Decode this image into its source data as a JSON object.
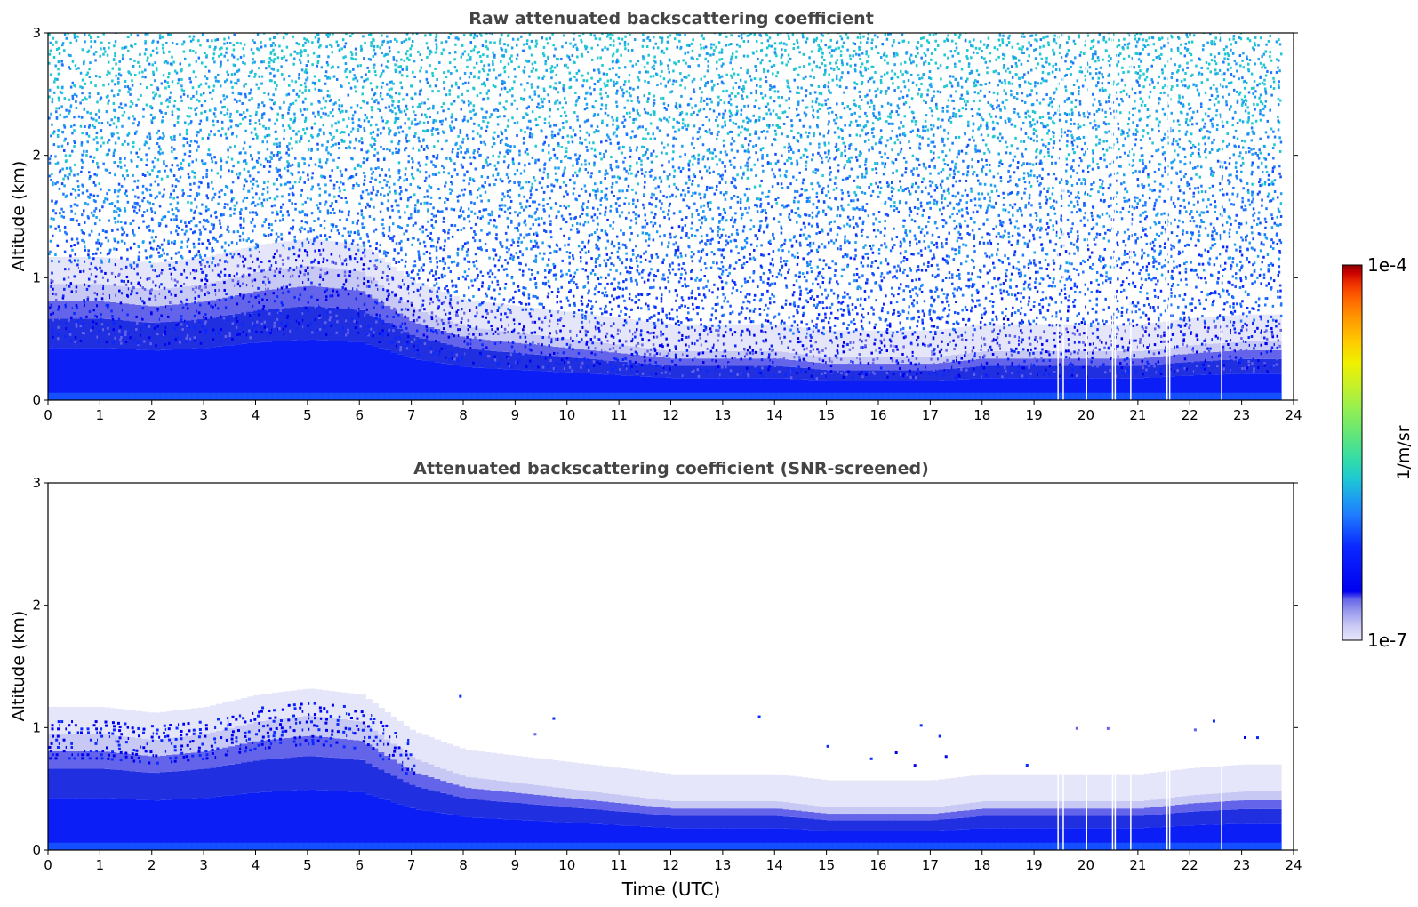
{
  "chart_data": [
    {
      "type": "heatmap",
      "title": "Raw attenuated backscattering coefficient",
      "xlabel": "",
      "ylabel": "Altitude (km)",
      "xlim": [
        0,
        24
      ],
      "ylim": [
        0,
        3
      ],
      "x_ticks": [
        0,
        1,
        2,
        3,
        4,
        5,
        6,
        7,
        8,
        9,
        10,
        11,
        12,
        13,
        14,
        15,
        16,
        17,
        18,
        19,
        20,
        21,
        22,
        23,
        24
      ],
      "y_ticks": [
        0,
        1,
        2,
        3
      ],
      "data_end_time": 23.7,
      "gap_times": [
        19.45,
        19.55,
        20.0,
        20.5,
        20.55,
        20.85,
        21.55,
        21.6,
        22.6
      ],
      "boundary_layer_top_km": [
        [
          0,
          0.95
        ],
        [
          1,
          0.95
        ],
        [
          2,
          0.9
        ],
        [
          3,
          0.95
        ],
        [
          4,
          1.05
        ],
        [
          5,
          1.1
        ],
        [
          6,
          1.05
        ],
        [
          7,
          0.75
        ],
        [
          8,
          0.6
        ],
        [
          9,
          0.55
        ],
        [
          10,
          0.5
        ],
        [
          11,
          0.45
        ],
        [
          12,
          0.4
        ],
        [
          13,
          0.4
        ],
        [
          14,
          0.4
        ],
        [
          15,
          0.35
        ],
        [
          16,
          0.35
        ],
        [
          17,
          0.35
        ],
        [
          18,
          0.4
        ],
        [
          19,
          0.4
        ],
        [
          20,
          0.4
        ],
        [
          21,
          0.4
        ],
        [
          22,
          0.45
        ],
        [
          23,
          0.48
        ],
        [
          23.7,
          0.48
        ]
      ],
      "noise": "high"
    },
    {
      "type": "heatmap",
      "title": "Attenuated backscattering coefficient (SNR-screened)",
      "xlabel": "Time (UTC)",
      "ylabel": "Altitude (km)",
      "xlim": [
        0,
        24
      ],
      "ylim": [
        0,
        3
      ],
      "x_ticks": [
        0,
        1,
        2,
        3,
        4,
        5,
        6,
        7,
        8,
        9,
        10,
        11,
        12,
        13,
        14,
        15,
        16,
        17,
        18,
        19,
        20,
        21,
        22,
        23,
        24
      ],
      "y_ticks": [
        0,
        1,
        2,
        3
      ],
      "data_end_time": 23.7,
      "gap_times": [
        19.45,
        19.55,
        20.0,
        20.5,
        20.55,
        20.85,
        21.55,
        21.6,
        22.6
      ],
      "boundary_layer_top_km": [
        [
          0,
          0.95
        ],
        [
          1,
          0.95
        ],
        [
          2,
          0.9
        ],
        [
          3,
          0.95
        ],
        [
          4,
          1.05
        ],
        [
          5,
          1.1
        ],
        [
          6,
          1.05
        ],
        [
          7,
          0.75
        ],
        [
          8,
          0.6
        ],
        [
          9,
          0.55
        ],
        [
          10,
          0.5
        ],
        [
          11,
          0.45
        ],
        [
          12,
          0.4
        ],
        [
          13,
          0.4
        ],
        [
          14,
          0.4
        ],
        [
          15,
          0.35
        ],
        [
          16,
          0.35
        ],
        [
          17,
          0.35
        ],
        [
          18,
          0.4
        ],
        [
          19,
          0.4
        ],
        [
          20,
          0.4
        ],
        [
          21,
          0.4
        ],
        [
          22,
          0.45
        ],
        [
          23,
          0.48
        ],
        [
          23.7,
          0.48
        ]
      ],
      "noise": "screened"
    }
  ],
  "colorbar": {
    "label": "1/m/sr",
    "min_label": "1e-7",
    "max_label": "1e-4",
    "colors": [
      "#e6e6fa",
      "#c8c8f5",
      "#9696ee",
      "#6464ea",
      "#0000f0",
      "#0a28ff",
      "#1450ff",
      "#1e78ff",
      "#1ea0f0",
      "#1ec8d2",
      "#32dcaa",
      "#64e678",
      "#96f050",
      "#c8f028",
      "#f0f000",
      "#ffc800",
      "#ff9600",
      "#ff6400",
      "#f03200",
      "#c80000",
      "#8b0000"
    ]
  }
}
